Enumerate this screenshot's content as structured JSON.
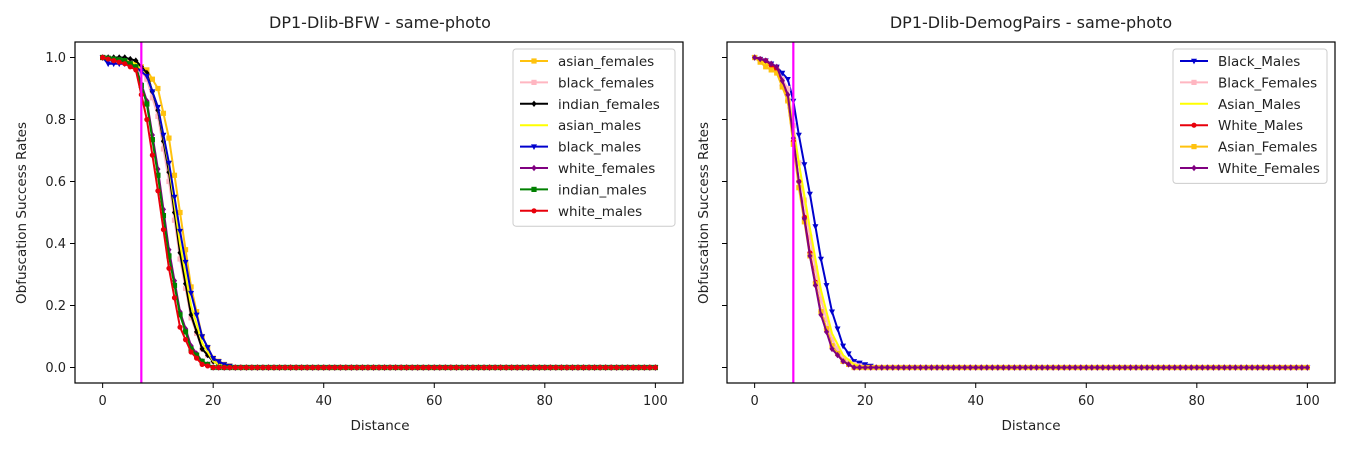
{
  "chart_data": [
    {
      "type": "line",
      "title": "DP1-Dlib-BFW - same-photo",
      "xlabel": "Distance",
      "ylabel": "Obfuscation Success Rates",
      "xlim": [
        -5,
        105
      ],
      "ylim": [
        -0.05,
        1.05
      ],
      "xticks": [
        "0",
        "20",
        "40",
        "60",
        "80",
        "100"
      ],
      "yticks": [
        "0.0",
        "0.2",
        "0.4",
        "0.6",
        "0.8",
        "1.0"
      ],
      "threshold_x": 7,
      "threshold_color": "#ff00ff",
      "legend_position": "top-right",
      "series": [
        {
          "name": "asian_females",
          "color": "#ffc20e",
          "marker": "square",
          "points": [
            [
              0,
              1.0
            ],
            [
              4,
              0.99
            ],
            [
              6,
              0.98
            ],
            [
              8,
              0.96
            ],
            [
              10,
              0.9
            ],
            [
              12,
              0.74
            ],
            [
              14,
              0.5
            ],
            [
              16,
              0.26
            ],
            [
              18,
              0.1
            ],
            [
              20,
              0.03
            ],
            [
              22,
              0.01
            ],
            [
              24,
              0.0
            ],
            [
              100,
              0.0
            ]
          ]
        },
        {
          "name": "black_females",
          "color": "#ffb6c1",
          "marker": "square",
          "points": [
            [
              0,
              1.0
            ],
            [
              4,
              0.99
            ],
            [
              6,
              0.98
            ],
            [
              8,
              0.93
            ],
            [
              10,
              0.81
            ],
            [
              12,
              0.6
            ],
            [
              14,
              0.35
            ],
            [
              16,
              0.16
            ],
            [
              18,
              0.06
            ],
            [
              20,
              0.02
            ],
            [
              22,
              0.0
            ],
            [
              100,
              0.0
            ]
          ]
        },
        {
          "name": "indian_females",
          "color": "#000000",
          "marker": "diamond",
          "points": [
            [
              0,
              1.0
            ],
            [
              4,
              1.0
            ],
            [
              6,
              0.99
            ],
            [
              8,
              0.95
            ],
            [
              10,
              0.83
            ],
            [
              12,
              0.63
            ],
            [
              14,
              0.37
            ],
            [
              16,
              0.17
            ],
            [
              18,
              0.06
            ],
            [
              20,
              0.02
            ],
            [
              22,
              0.0
            ],
            [
              100,
              0.0
            ]
          ]
        },
        {
          "name": "asian_males",
          "color": "#ffff00",
          "marker": "none",
          "points": [
            [
              0,
              1.0
            ],
            [
              4,
              0.99
            ],
            [
              6,
              0.98
            ],
            [
              8,
              0.94
            ],
            [
              10,
              0.84
            ],
            [
              12,
              0.65
            ],
            [
              14,
              0.4
            ],
            [
              16,
              0.2
            ],
            [
              18,
              0.08
            ],
            [
              20,
              0.02
            ],
            [
              22,
              0.0
            ],
            [
              100,
              0.0
            ]
          ]
        },
        {
          "name": "black_males",
          "color": "#0000cd",
          "marker": "triangle-down",
          "points": [
            [
              0,
              1.0
            ],
            [
              1,
              0.98
            ],
            [
              4,
              0.98
            ],
            [
              6,
              0.97
            ],
            [
              8,
              0.94
            ],
            [
              10,
              0.84
            ],
            [
              12,
              0.66
            ],
            [
              14,
              0.44
            ],
            [
              16,
              0.24
            ],
            [
              18,
              0.1
            ],
            [
              20,
              0.03
            ],
            [
              22,
              0.01
            ],
            [
              24,
              0.0
            ],
            [
              100,
              0.0
            ]
          ]
        },
        {
          "name": "white_females",
          "color": "#800080",
          "marker": "diamond",
          "points": [
            [
              0,
              1.0
            ],
            [
              4,
              0.99
            ],
            [
              6,
              0.97
            ],
            [
              8,
              0.86
            ],
            [
              10,
              0.64
            ],
            [
              12,
              0.38
            ],
            [
              14,
              0.18
            ],
            [
              16,
              0.07
            ],
            [
              18,
              0.02
            ],
            [
              20,
              0.0
            ],
            [
              100,
              0.0
            ]
          ]
        },
        {
          "name": "indian_males",
          "color": "#008000",
          "marker": "square",
          "points": [
            [
              0,
              1.0
            ],
            [
              4,
              0.99
            ],
            [
              6,
              0.97
            ],
            [
              8,
              0.85
            ],
            [
              10,
              0.62
            ],
            [
              12,
              0.36
            ],
            [
              14,
              0.17
            ],
            [
              16,
              0.06
            ],
            [
              18,
              0.02
            ],
            [
              20,
              0.0
            ],
            [
              100,
              0.0
            ]
          ]
        },
        {
          "name": "white_males",
          "color": "#e8000b",
          "marker": "circle",
          "points": [
            [
              0,
              1.0
            ],
            [
              4,
              0.98
            ],
            [
              6,
              0.96
            ],
            [
              8,
              0.8
            ],
            [
              10,
              0.57
            ],
            [
              12,
              0.32
            ],
            [
              14,
              0.13
            ],
            [
              16,
              0.05
            ],
            [
              18,
              0.01
            ],
            [
              20,
              0.0
            ],
            [
              100,
              0.0
            ]
          ]
        }
      ]
    },
    {
      "type": "line",
      "title": "DP1-Dlib-DemogPairs - same-photo",
      "xlabel": "Distance",
      "ylabel": "Obfuscation Success Rates",
      "xlim": [
        -5,
        105
      ],
      "ylim": [
        -0.05,
        1.05
      ],
      "xticks": [
        "0",
        "20",
        "40",
        "60",
        "80",
        "100"
      ],
      "yticks": [
        "0.0",
        "0.2",
        "0.4",
        "0.6",
        "0.8",
        "1.0"
      ],
      "threshold_x": 7,
      "threshold_color": "#ff00ff",
      "legend_position": "top-right",
      "series": [
        {
          "name": "Black_Males",
          "color": "#0000cd",
          "marker": "triangle-down",
          "points": [
            [
              0,
              1.0
            ],
            [
              2,
              0.99
            ],
            [
              4,
              0.97
            ],
            [
              6,
              0.93
            ],
            [
              7,
              0.86
            ],
            [
              8,
              0.75
            ],
            [
              10,
              0.56
            ],
            [
              12,
              0.35
            ],
            [
              14,
              0.18
            ],
            [
              16,
              0.07
            ],
            [
              18,
              0.02
            ],
            [
              20,
              0.01
            ],
            [
              22,
              0.0
            ],
            [
              100,
              0.0
            ]
          ]
        },
        {
          "name": "Black_Females",
          "color": "#ffb6c1",
          "marker": "square",
          "points": [
            [
              0,
              1.0
            ],
            [
              2,
              0.98
            ],
            [
              4,
              0.96
            ],
            [
              6,
              0.9
            ],
            [
              8,
              0.66
            ],
            [
              10,
              0.42
            ],
            [
              12,
              0.22
            ],
            [
              14,
              0.09
            ],
            [
              16,
              0.03
            ],
            [
              18,
              0.01
            ],
            [
              20,
              0.0
            ],
            [
              100,
              0.0
            ]
          ]
        },
        {
          "name": "Asian_Males",
          "color": "#ffff00",
          "marker": "none",
          "points": [
            [
              0,
              1.0
            ],
            [
              2,
              0.98
            ],
            [
              4,
              0.96
            ],
            [
              6,
              0.88
            ],
            [
              8,
              0.66
            ],
            [
              10,
              0.45
            ],
            [
              12,
              0.25
            ],
            [
              14,
              0.11
            ],
            [
              16,
              0.04
            ],
            [
              18,
              0.01
            ],
            [
              20,
              0.0
            ],
            [
              100,
              0.0
            ]
          ]
        },
        {
          "name": "White_Males",
          "color": "#e8000b",
          "marker": "circle",
          "points": [
            [
              0,
              1.0
            ],
            [
              2,
              0.99
            ],
            [
              4,
              0.96
            ],
            [
              6,
              0.86
            ],
            [
              8,
              0.6
            ],
            [
              10,
              0.37
            ],
            [
              12,
              0.18
            ],
            [
              14,
              0.07
            ],
            [
              16,
              0.02
            ],
            [
              18,
              0.0
            ],
            [
              100,
              0.0
            ]
          ]
        },
        {
          "name": "Asian_Females",
          "color": "#ffc20e",
          "marker": "square",
          "points": [
            [
              0,
              1.0
            ],
            [
              2,
              0.97
            ],
            [
              4,
              0.95
            ],
            [
              6,
              0.86
            ],
            [
              8,
              0.58
            ],
            [
              10,
              0.36
            ],
            [
              12,
              0.18
            ],
            [
              14,
              0.07
            ],
            [
              16,
              0.02
            ],
            [
              18,
              0.0
            ],
            [
              100,
              0.0
            ]
          ]
        },
        {
          "name": "White_Females",
          "color": "#800080",
          "marker": "diamond",
          "points": [
            [
              0,
              1.0
            ],
            [
              2,
              0.99
            ],
            [
              4,
              0.97
            ],
            [
              6,
              0.88
            ],
            [
              8,
              0.6
            ],
            [
              10,
              0.36
            ],
            [
              12,
              0.17
            ],
            [
              14,
              0.06
            ],
            [
              16,
              0.02
            ],
            [
              18,
              0.0
            ],
            [
              100,
              0.0
            ]
          ]
        }
      ]
    }
  ]
}
